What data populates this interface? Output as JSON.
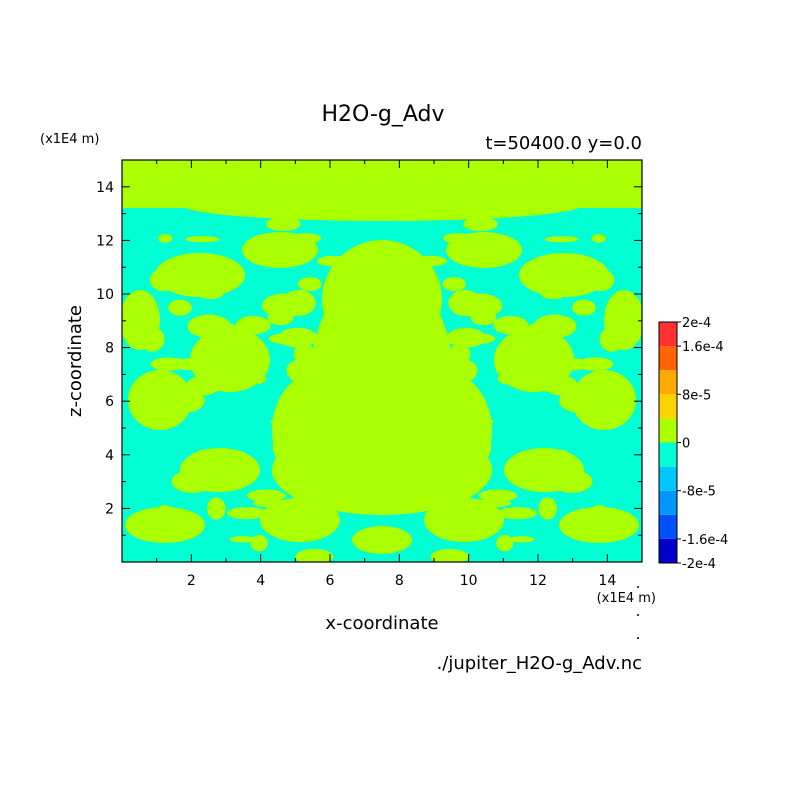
{
  "chart_data": {
    "type": "heatmap",
    "title": "H2O-g_Adv",
    "subtitle": "t=50400.0 y=0.0",
    "xlabel": "x-coordinate",
    "ylabel": "z-coordinate",
    "x_unit": "(x1E4 m)",
    "y_unit": "(x1E4 m)",
    "xlim": [
      0,
      15
    ],
    "ylim": [
      0,
      15
    ],
    "xticks": [
      "2",
      "4",
      "6",
      "8",
      "10",
      "12",
      "14"
    ],
    "yticks": [
      "2",
      "4",
      "6",
      "8",
      "10",
      "12",
      "14"
    ],
    "xtick_values": [
      2,
      4,
      6,
      8,
      10,
      12,
      14
    ],
    "ytick_values": [
      2,
      4,
      6,
      8,
      10,
      12,
      14
    ],
    "colorbar": {
      "labels": [
        "2e-4",
        "1.6e-4",
        "8e-5",
        "0",
        "-8e-5",
        "-1.6e-4",
        "-2e-4"
      ],
      "label_values": [
        0.0002,
        0.00016,
        8e-05,
        0,
        -8e-05,
        -0.00016,
        -0.0002
      ],
      "range": [
        -0.0002,
        0.0002
      ],
      "levels": [
        {
          "from": -0.0002,
          "to": -0.00016,
          "color": "#0000c8"
        },
        {
          "from": -0.00016,
          "to": -0.00012,
          "color": "#0050ff"
        },
        {
          "from": -0.00012,
          "to": -8e-05,
          "color": "#0096ff"
        },
        {
          "from": -8e-05,
          "to": -4e-05,
          "color": "#00c8ff"
        },
        {
          "from": -4e-05,
          "to": 0,
          "color": "#00ffd2"
        },
        {
          "from": 0,
          "to": 4e-05,
          "color": "#aaff00"
        },
        {
          "from": 4e-05,
          "to": 8e-05,
          "color": "#ffd200"
        },
        {
          "from": 8e-05,
          "to": 0.00012,
          "color": "#ffaa00"
        },
        {
          "from": 0.00012,
          "to": 0.00016,
          "color": "#ff6400"
        },
        {
          "from": 0.00016,
          "to": 0.0002,
          "color": "#ff3232"
        }
      ]
    },
    "field_values_present": [
      -2e-05,
      2e-05
    ],
    "field_colors": {
      "negative": "#00ffd2",
      "positive": "#aaff00"
    },
    "grid": false
  },
  "footer": "./jupiter_H2O-g_Adv.nc"
}
